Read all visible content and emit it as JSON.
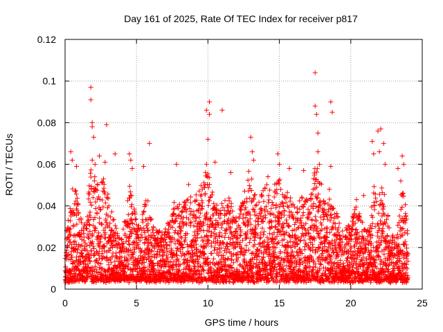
{
  "chart_data": {
    "type": "scatter",
    "title": "Day 161 of 2025, Rate Of TEC Index for receiver p817",
    "xlabel": "GPS time / hours",
    "ylabel": "ROTI / TECUs",
    "xlim": [
      0,
      25
    ],
    "ylim": [
      0,
      0.12
    ],
    "x_ticks": [
      0,
      5,
      10,
      15,
      20,
      25
    ],
    "y_ticks": [
      0,
      0.02,
      0.04,
      0.06,
      0.08,
      0.1,
      0.12
    ],
    "x_tick_labels": [
      "0",
      "5",
      "10",
      "15",
      "20",
      "25"
    ],
    "y_tick_labels": [
      "0",
      "0.02",
      "0.04",
      "0.06",
      "0.08",
      "0.1",
      "0.12"
    ],
    "grid": true,
    "legend": "none",
    "marker": "plus",
    "marker_color": "#ff0000",
    "data_extent": [
      0,
      24
    ],
    "points": [
      [
        1.8,
        0.097
      ],
      [
        1.8,
        0.091
      ],
      [
        1.9,
        0.08
      ],
      [
        1.9,
        0.078
      ],
      [
        2.0,
        0.073
      ],
      [
        2.9,
        0.079
      ],
      [
        0.4,
        0.066
      ],
      [
        0.5,
        0.062
      ],
      [
        0.8,
        0.059
      ],
      [
        1.9,
        0.062
      ],
      [
        2.1,
        0.06
      ],
      [
        2.4,
        0.064
      ],
      [
        2.8,
        0.061
      ],
      [
        3.5,
        0.065
      ],
      [
        4.5,
        0.065
      ],
      [
        4.6,
        0.062
      ],
      [
        4.7,
        0.058
      ],
      [
        5.5,
        0.059
      ],
      [
        5.9,
        0.07
      ],
      [
        7.8,
        0.06
      ],
      [
        9.9,
        0.086
      ],
      [
        10.1,
        0.09
      ],
      [
        10.1,
        0.084
      ],
      [
        10.0,
        0.072
      ],
      [
        9.9,
        0.06
      ],
      [
        10.5,
        0.061
      ],
      [
        11.0,
        0.086
      ],
      [
        11.6,
        0.056
      ],
      [
        13.0,
        0.073
      ],
      [
        13.1,
        0.066
      ],
      [
        13.2,
        0.062
      ],
      [
        14.2,
        0.054
      ],
      [
        14.9,
        0.065
      ],
      [
        15.0,
        0.06
      ],
      [
        15.7,
        0.058
      ],
      [
        16.7,
        0.057
      ],
      [
        17.5,
        0.104
      ],
      [
        17.5,
        0.088
      ],
      [
        17.6,
        0.084
      ],
      [
        17.7,
        0.075
      ],
      [
        17.7,
        0.066
      ],
      [
        17.8,
        0.06
      ],
      [
        18.6,
        0.09
      ],
      [
        18.7,
        0.085
      ],
      [
        18.6,
        0.059
      ],
      [
        18.5,
        0.048
      ],
      [
        20.4,
        0.043
      ],
      [
        20.9,
        0.045
      ],
      [
        21.5,
        0.071
      ],
      [
        21.6,
        0.065
      ],
      [
        21.9,
        0.076
      ],
      [
        22.1,
        0.077
      ],
      [
        22.0,
        0.066
      ],
      [
        22.3,
        0.07
      ],
      [
        22.4,
        0.06
      ],
      [
        21.8,
        0.042
      ],
      [
        23.3,
        0.058
      ],
      [
        23.6,
        0.064
      ],
      [
        23.7,
        0.06
      ],
      [
        23.5,
        0.052
      ]
    ],
    "envelope": [
      [
        0.0,
        0.022
      ],
      [
        0.3,
        0.04
      ],
      [
        0.6,
        0.052
      ],
      [
        0.9,
        0.045
      ],
      [
        1.2,
        0.03
      ],
      [
        1.5,
        0.036
      ],
      [
        1.8,
        0.06
      ],
      [
        2.1,
        0.056
      ],
      [
        2.4,
        0.05
      ],
      [
        2.7,
        0.056
      ],
      [
        3.0,
        0.045
      ],
      [
        3.3,
        0.036
      ],
      [
        3.6,
        0.03
      ],
      [
        3.9,
        0.025
      ],
      [
        4.2,
        0.033
      ],
      [
        4.5,
        0.05
      ],
      [
        4.8,
        0.042
      ],
      [
        5.1,
        0.03
      ],
      [
        5.4,
        0.036
      ],
      [
        5.7,
        0.047
      ],
      [
        6.0,
        0.035
      ],
      [
        6.3,
        0.028
      ],
      [
        6.6,
        0.03
      ],
      [
        6.9,
        0.025
      ],
      [
        7.2,
        0.033
      ],
      [
        7.5,
        0.038
      ],
      [
        7.8,
        0.048
      ],
      [
        8.1,
        0.038
      ],
      [
        8.4,
        0.044
      ],
      [
        8.7,
        0.052
      ],
      [
        9.0,
        0.042
      ],
      [
        9.3,
        0.048
      ],
      [
        9.6,
        0.052
      ],
      [
        9.9,
        0.058
      ],
      [
        10.2,
        0.05
      ],
      [
        10.5,
        0.045
      ],
      [
        10.8,
        0.038
      ],
      [
        11.1,
        0.042
      ],
      [
        11.4,
        0.046
      ],
      [
        11.7,
        0.04
      ],
      [
        12.0,
        0.035
      ],
      [
        12.3,
        0.04
      ],
      [
        12.6,
        0.048
      ],
      [
        12.9,
        0.058
      ],
      [
        13.2,
        0.052
      ],
      [
        13.5,
        0.044
      ],
      [
        13.8,
        0.048
      ],
      [
        14.1,
        0.052
      ],
      [
        14.4,
        0.045
      ],
      [
        14.7,
        0.05
      ],
      [
        15.0,
        0.055
      ],
      [
        15.3,
        0.045
      ],
      [
        15.6,
        0.048
      ],
      [
        15.9,
        0.042
      ],
      [
        16.2,
        0.038
      ],
      [
        16.5,
        0.044
      ],
      [
        16.8,
        0.05
      ],
      [
        17.1,
        0.04
      ],
      [
        17.4,
        0.058
      ],
      [
        17.7,
        0.06
      ],
      [
        18.0,
        0.048
      ],
      [
        18.3,
        0.04
      ],
      [
        18.6,
        0.045
      ],
      [
        18.9,
        0.04
      ],
      [
        19.2,
        0.033
      ],
      [
        19.5,
        0.028
      ],
      [
        19.8,
        0.032
      ],
      [
        20.1,
        0.036
      ],
      [
        20.4,
        0.04
      ],
      [
        20.7,
        0.038
      ],
      [
        21.0,
        0.03
      ],
      [
        21.3,
        0.028
      ],
      [
        21.6,
        0.052
      ],
      [
        21.9,
        0.045
      ],
      [
        22.2,
        0.055
      ],
      [
        22.5,
        0.04
      ],
      [
        22.8,
        0.025
      ],
      [
        23.1,
        0.028
      ],
      [
        23.4,
        0.038
      ],
      [
        23.7,
        0.055
      ],
      [
        24.0,
        0.025
      ]
    ],
    "baseline_y": 0.004
  }
}
